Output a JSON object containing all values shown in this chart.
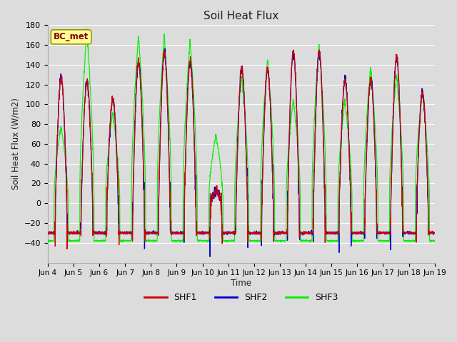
{
  "title": "Soil Heat Flux",
  "ylabel": "Soil Heat Flux (W/m2)",
  "xlabel": "Time",
  "ylim": [
    -60,
    180
  ],
  "yticks": [
    -40,
    -20,
    0,
    20,
    40,
    60,
    80,
    100,
    120,
    140,
    160,
    180
  ],
  "background_color": "#dcdcdc",
  "plot_bg_color": "#dcdcdc",
  "grid_color": "#ffffff",
  "shf1_color": "#cc0000",
  "shf2_color": "#0000cc",
  "shf3_color": "#00ee00",
  "legend_label1": "SHF1",
  "legend_label2": "SHF2",
  "legend_label3": "SHF3",
  "annotation_text": "BC_met",
  "annotation_color": "#880000",
  "annotation_bg": "#ffff99",
  "n_days": 15,
  "points_per_day": 144,
  "start_day": 4,
  "day_peaks_shf3": [
    78,
    175,
    92,
    170,
    170,
    165,
    69,
    128,
    145,
    105,
    162,
    104,
    138,
    130,
    113
  ],
  "day_peaks_shf1": [
    127,
    122,
    105,
    143,
    152,
    143,
    12,
    136,
    135,
    153,
    153,
    125,
    125,
    147,
    111
  ],
  "day_peaks_shf2": [
    127,
    122,
    105,
    143,
    152,
    143,
    12,
    136,
    135,
    153,
    153,
    125,
    125,
    147,
    111
  ],
  "night_shf3": -38,
  "night_shf12": -30,
  "figsize": [
    6.4,
    4.8
  ],
  "dpi": 100
}
